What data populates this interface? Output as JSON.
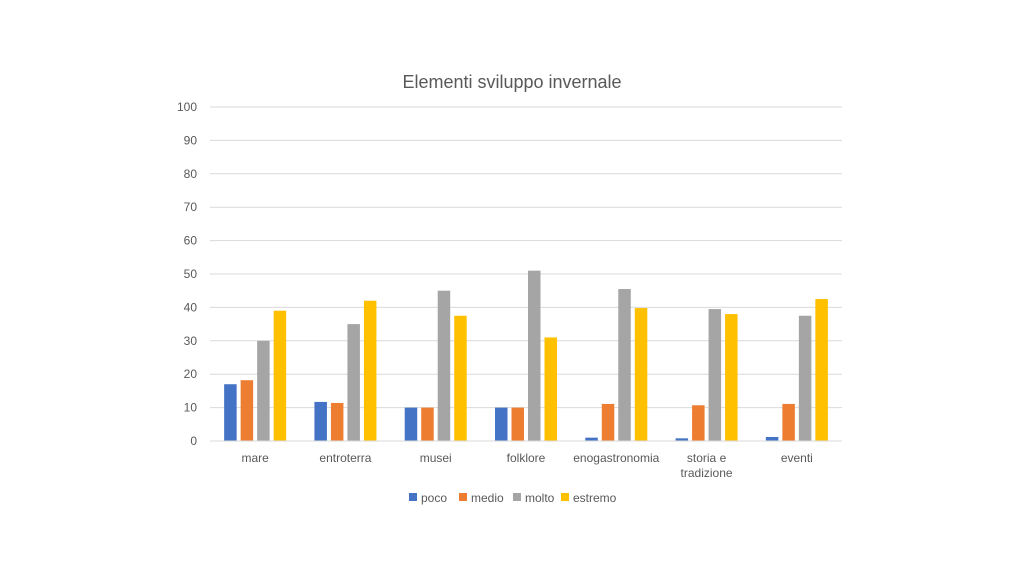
{
  "chart_data": {
    "type": "bar",
    "title": "Elementi sviluppo invernale",
    "categories": [
      [
        "mare"
      ],
      [
        "entroterra"
      ],
      [
        "musei"
      ],
      [
        "folklore"
      ],
      [
        "enogastronomia"
      ],
      [
        "storia e",
        "tradizione"
      ],
      [
        "eventi"
      ]
    ],
    "series": [
      {
        "name": "poco",
        "color": "#4472C4",
        "values": [
          17,
          11.7,
          10,
          10,
          1,
          0.8,
          1.2
        ]
      },
      {
        "name": "medio",
        "color": "#ED7D31",
        "values": [
          18.2,
          11.4,
          10,
          10,
          11.1,
          10.7,
          11.1
        ]
      },
      {
        "name": "molto",
        "color": "#A5A5A5",
        "values": [
          30,
          35,
          45,
          51,
          45.5,
          39.5,
          37.5
        ]
      },
      {
        "name": "estremo",
        "color": "#FFC000",
        "values": [
          39,
          42,
          37.5,
          31,
          39.8,
          38,
          42.5
        ]
      }
    ],
    "ylim": [
      0,
      100
    ],
    "yticks": [
      0,
      10,
      20,
      30,
      40,
      50,
      60,
      70,
      80,
      90,
      100
    ],
    "grid": true,
    "legend": "bottom"
  }
}
